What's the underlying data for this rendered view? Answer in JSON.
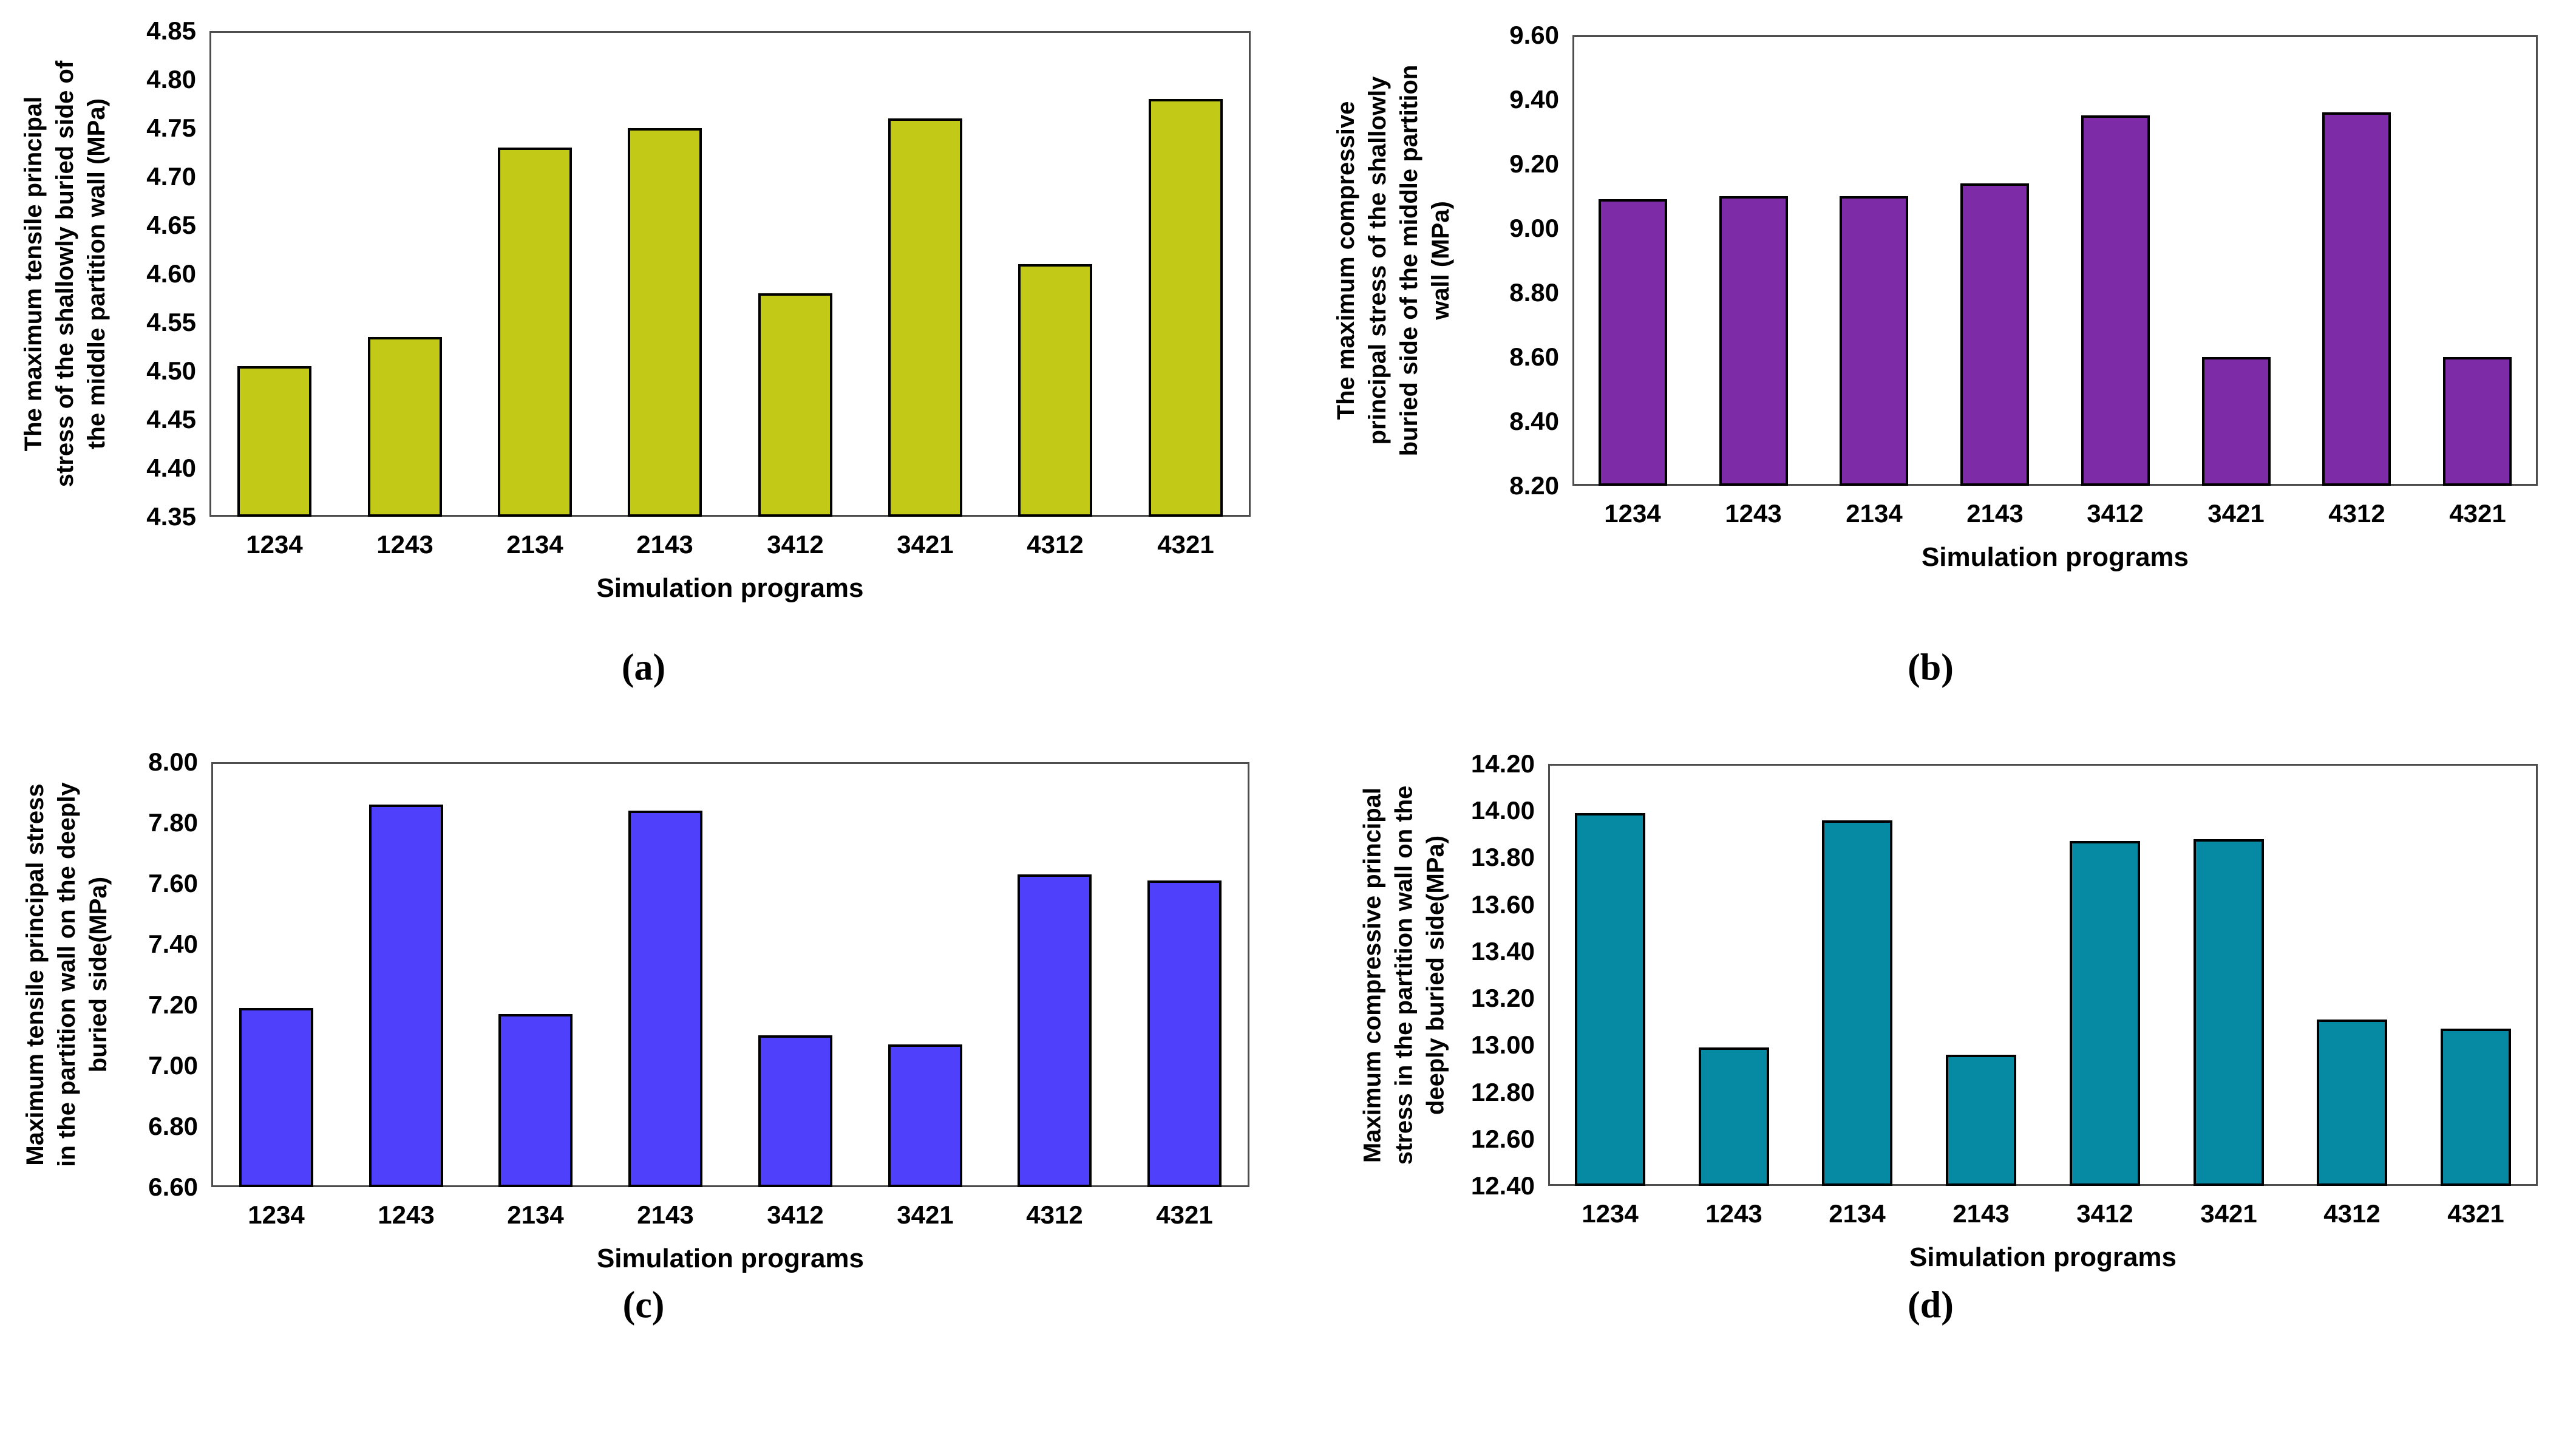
{
  "figure": {
    "xlabel": "Simulation programs",
    "categories": [
      "1234",
      "1243",
      "2134",
      "2143",
      "3412",
      "3421",
      "4312",
      "4321"
    ],
    "panel_labels": [
      "(a)",
      "(b)",
      "(c)",
      "(d)"
    ]
  },
  "chart_data": [
    {
      "type": "bar",
      "panel_label": "(a)",
      "ylabel": "The maximum tensile principal stress of the shallowly buried side of the middle partition wall (MPa)",
      "ylabel_lines": [
        "The maximum tensile principal",
        "stress of the shallowly buried side of",
        "the middle partition wall (MPa)"
      ],
      "xlabel": "Simulation programs",
      "categories": [
        "1234",
        "1243",
        "2134",
        "2143",
        "3412",
        "3421",
        "4312",
        "4321"
      ],
      "values": [
        4.505,
        4.535,
        4.73,
        4.75,
        4.58,
        4.76,
        4.61,
        4.78
      ],
      "ylim": [
        4.35,
        4.85
      ],
      "ytick_labels": [
        "4.85",
        "4.80",
        "4.75",
        "4.70",
        "4.65",
        "4.60",
        "4.55",
        "4.50",
        "4.45",
        "4.40",
        "4.35"
      ],
      "bar_color": "#c2c916",
      "bar_border_color": "#000000",
      "grid": false,
      "legend": "none"
    },
    {
      "type": "bar",
      "panel_label": "(b)",
      "ylabel": "The maximum compressive principal stress of the shallowly buried side of the middle partition wall (MPa)",
      "ylabel_lines": [
        "The maximum compressive",
        "principal stress of the shallowly",
        "buried side of the middle partition",
        "wall (MPa)"
      ],
      "xlabel": "Simulation programs",
      "categories": [
        "1234",
        "1243",
        "2134",
        "2143",
        "3412",
        "3421",
        "4312",
        "4321"
      ],
      "values": [
        9.09,
        9.1,
        9.1,
        9.14,
        9.35,
        8.6,
        9.36,
        8.6
      ],
      "ylim": [
        8.2,
        9.6
      ],
      "ytick_labels": [
        "9.60",
        "9.40",
        "9.20",
        "9.00",
        "8.80",
        "8.60",
        "8.40",
        "8.20"
      ],
      "bar_color": "#7d2ba6",
      "bar_border_color": "#000000",
      "grid": false,
      "legend": "none"
    },
    {
      "type": "bar",
      "panel_label": "(c)",
      "ylabel": "Maximum tensile principal stress in the partition wall on the deeply buried side(MPa)",
      "ylabel_lines": [
        "Maximum tensile principal stress",
        "in the partition wall on the deeply",
        "buried side(MPa)"
      ],
      "xlabel": "Simulation programs",
      "categories": [
        "1234",
        "1243",
        "2134",
        "2143",
        "3412",
        "3421",
        "4312",
        "4321"
      ],
      "values": [
        7.19,
        7.86,
        7.17,
        7.84,
        7.1,
        7.07,
        7.63,
        7.61
      ],
      "ylim": [
        6.6,
        8.0
      ],
      "ytick_labels": [
        "8.00",
        "7.80",
        "7.60",
        "7.40",
        "7.20",
        "7.00",
        "6.80",
        "6.60"
      ],
      "bar_color": "#4f41fb",
      "bar_border_color": "#000000",
      "grid": false,
      "legend": "none"
    },
    {
      "type": "bar",
      "panel_label": "(d)",
      "ylabel": "Maximum compressive principal stress in the partition wall on the deeply buried side(MPa)",
      "ylabel_lines": [
        "Maximum compressive principal",
        "stress in the partition wall on the",
        "deeply buried side(MPa)"
      ],
      "xlabel": "Simulation programs",
      "categories": [
        "1234",
        "1243",
        "2134",
        "2143",
        "3412",
        "3421",
        "4312",
        "4321"
      ],
      "values": [
        13.99,
        12.99,
        13.96,
        12.96,
        13.87,
        13.88,
        13.11,
        13.07
      ],
      "ylim": [
        12.4,
        14.2
      ],
      "ytick_labels": [
        "14.20",
        "14.00",
        "13.80",
        "13.60",
        "13.40",
        "13.20",
        "13.00",
        "12.80",
        "12.60",
        "12.40"
      ],
      "bar_color": "#0689a2",
      "bar_border_color": "#000000",
      "grid": false,
      "legend": "none"
    }
  ]
}
